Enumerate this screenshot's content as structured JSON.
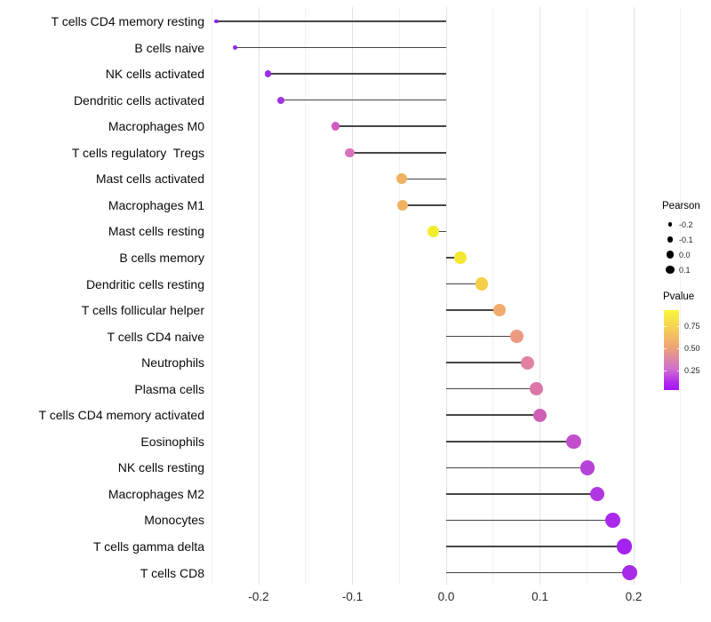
{
  "chart_data": {
    "type": "lollipop",
    "orientation": "horizontal",
    "title": "",
    "xlabel": "",
    "ylabel": "",
    "x_ticks": [
      "-0.2",
      "-0.1",
      "0.0",
      "0.1",
      "0.2"
    ],
    "x_minor_gridlines": [
      -0.25,
      -0.15,
      -0.05,
      0.05,
      0.15,
      0.25
    ],
    "xlim": [
      -0.253,
      0.278
    ],
    "grid": "vertical major and minor gridlines, light gray on white, no axis lines",
    "points": [
      {
        "cell": "T cells CD4 memory resting",
        "pearson": -0.245,
        "pvalue_approx": 0.02,
        "color": "#8A28E2"
      },
      {
        "cell": "B cells naive",
        "pearson": -0.225,
        "pvalue_approx": 0.03,
        "color": "#9129E6"
      },
      {
        "cell": "NK cells activated",
        "pearson": -0.19,
        "pvalue_approx": 0.07,
        "color": "#9C2CE6"
      },
      {
        "cell": "Dendritic cells activated",
        "pearson": -0.176,
        "pvalue_approx": 0.09,
        "color": "#A134E4"
      },
      {
        "cell": "Macrophages M0",
        "pearson": -0.118,
        "pvalue_approx": 0.26,
        "color": "#D05AC1"
      },
      {
        "cell": "T cells regulatory  Tregs",
        "pearson": -0.103,
        "pvalue_approx": 0.31,
        "color": "#D873BB"
      },
      {
        "cell": "Mast cells activated",
        "pearson": -0.047,
        "pvalue_approx": 0.58,
        "color": "#F0B163"
      },
      {
        "cell": "Macrophages M1",
        "pearson": -0.046,
        "pvalue_approx": 0.58,
        "color": "#F0B163"
      },
      {
        "cell": "Mast cells resting",
        "pearson": -0.014,
        "pvalue_approx": 0.88,
        "color": "#F2EE2D"
      },
      {
        "cell": "B cells memory",
        "pearson": 0.015,
        "pvalue_approx": 0.85,
        "color": "#F4E833"
      },
      {
        "cell": "Dendritic cells resting",
        "pearson": 0.038,
        "pvalue_approx": 0.72,
        "color": "#F6CF49"
      },
      {
        "cell": "T cells follicular helper",
        "pearson": 0.057,
        "pvalue_approx": 0.56,
        "color": "#F2AB6B"
      },
      {
        "cell": "T cells CD4 naive",
        "pearson": 0.075,
        "pvalue_approx": 0.47,
        "color": "#ED9A82"
      },
      {
        "cell": "Neutrophils",
        "pearson": 0.087,
        "pvalue_approx": 0.38,
        "color": "#E2819E"
      },
      {
        "cell": "Plasma cells",
        "pearson": 0.096,
        "pvalue_approx": 0.35,
        "color": "#DB75A7"
      },
      {
        "cell": "T cells CD4 memory activated",
        "pearson": 0.1,
        "pvalue_approx": 0.28,
        "color": "#CC5FB5"
      },
      {
        "cell": "Eosinophils",
        "pearson": 0.136,
        "pvalue_approx": 0.2,
        "color": "#C14ECB"
      },
      {
        "cell": "NK cells resting",
        "pearson": 0.151,
        "pvalue_approx": 0.16,
        "color": "#B843D9"
      },
      {
        "cell": "Macrophages M2",
        "pearson": 0.161,
        "pvalue_approx": 0.12,
        "color": "#B036E2"
      },
      {
        "cell": "Monocytes",
        "pearson": 0.178,
        "pvalue_approx": 0.08,
        "color": "#AA2AEA"
      },
      {
        "cell": "T cells gamma delta",
        "pearson": 0.19,
        "pvalue_approx": 0.06,
        "color": "#A423ED"
      },
      {
        "cell": "T cells CD8",
        "pearson": 0.196,
        "pvalue_approx": 0.05,
        "color": "#A82BE8"
      }
    ],
    "size_legend": {
      "title": "Pearson",
      "items": [
        "-0.2",
        "-0.1",
        "0.0",
        "0.1"
      ]
    },
    "color_legend": {
      "title": "Pvalue",
      "tick_labels": [
        "0.75",
        "0.50",
        "0.25"
      ],
      "gradient": [
        [
          "#FAF73C",
          0
        ],
        [
          "#F7D94F",
          17
        ],
        [
          "#EFA476",
          46
        ],
        [
          "#CF6BD2",
          75
        ],
        [
          "#B02BEC",
          90
        ],
        [
          "#A415F3",
          100
        ]
      ]
    }
  }
}
